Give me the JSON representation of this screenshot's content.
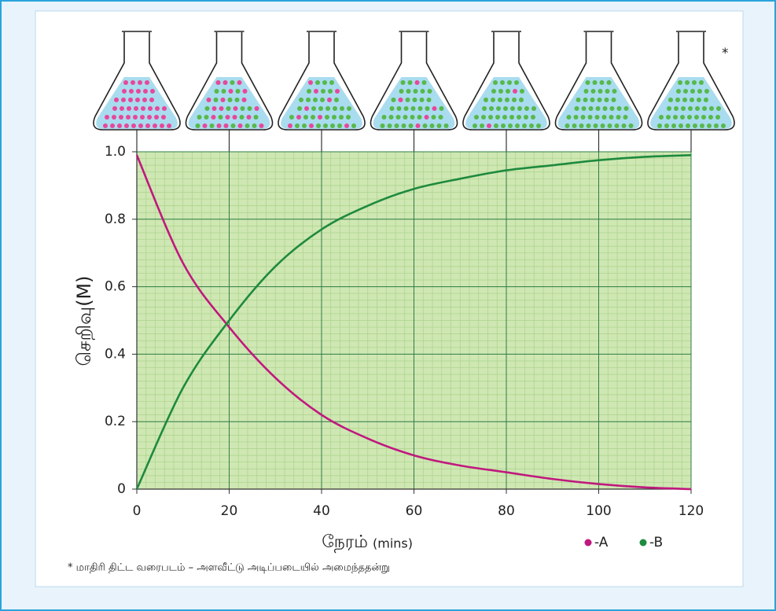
{
  "chart_data": {
    "type": "line",
    "x_label": "நேரம்",
    "x_unit": "(mins)",
    "y_label": "செறிவு(M)",
    "footnote": "* மாதிரி திட்ட வரைபடம் – அளவீட்டு அடிப்படையில் அமைந்ததன்று",
    "flask_note": "*",
    "x": [
      0,
      10,
      20,
      30,
      40,
      50,
      60,
      70,
      80,
      90,
      100,
      110,
      120
    ],
    "series": [
      {
        "name": "-A",
        "color": "#c0187e",
        "values": [
          0.99,
          0.67,
          0.48,
          0.33,
          0.22,
          0.15,
          0.1,
          0.07,
          0.05,
          0.03,
          0.015,
          0.005,
          0
        ]
      },
      {
        "name": "-B",
        "color": "#1e8a3e",
        "values": [
          0,
          0.3,
          0.5,
          0.66,
          0.77,
          0.84,
          0.89,
          0.92,
          0.945,
          0.96,
          0.975,
          0.985,
          0.99
        ]
      }
    ],
    "xlim": [
      0,
      120
    ],
    "xticks": [
      0,
      20,
      40,
      60,
      80,
      100,
      120
    ],
    "ylim": [
      0,
      1
    ],
    "yticks": [
      0,
      0.2,
      0.4,
      0.6,
      0.8,
      {
        "value": 1,
        "label": "1.0"
      }
    ],
    "grid": true
  }
}
